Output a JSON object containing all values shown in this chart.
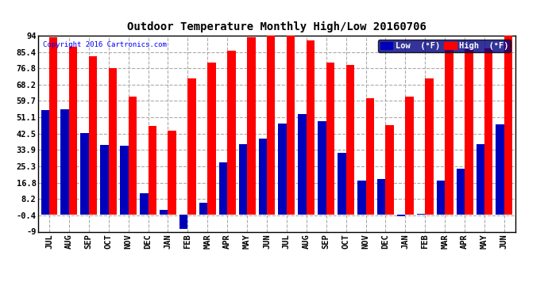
{
  "title": "Outdoor Temperature Monthly High/Low 20160706",
  "copyright": "Copyright 2016 Cartronics.com",
  "months": [
    "JUL",
    "AUG",
    "SEP",
    "OCT",
    "NOV",
    "DEC",
    "JAN",
    "FEB",
    "MAR",
    "APR",
    "MAY",
    "JUN",
    "JUL",
    "AUG",
    "SEP",
    "OCT",
    "NOV",
    "DEC",
    "JAN",
    "FEB",
    "MAR",
    "APR",
    "MAY",
    "JUN"
  ],
  "high_vals": [
    93.0,
    88.0,
    83.0,
    77.0,
    62.0,
    46.5,
    44.0,
    71.5,
    80.0,
    86.0,
    93.0,
    94.0,
    94.0,
    91.5,
    80.0,
    78.5,
    61.0,
    47.0,
    62.0,
    71.5,
    87.0,
    87.0,
    87.5,
    94.0
  ],
  "low_vals": [
    55.0,
    55.5,
    43.0,
    36.5,
    36.0,
    11.0,
    2.5,
    -7.5,
    6.0,
    27.5,
    37.0,
    40.0,
    48.0,
    53.0,
    49.0,
    32.5,
    18.0,
    18.5,
    -1.0,
    0.5,
    18.0,
    24.0,
    37.0,
    47.5
  ],
  "ylim": [
    -9.0,
    94.0
  ],
  "yticks": [
    -9.0,
    -0.4,
    8.2,
    16.8,
    25.3,
    33.9,
    42.5,
    51.1,
    59.7,
    68.2,
    76.8,
    85.4,
    94.0
  ],
  "bar_color_high": "#FF0000",
  "bar_color_low": "#0000BB",
  "background_color": "#FFFFFF",
  "grid_color": "#AAAAAA",
  "title_fontsize": 10,
  "legend_low_label": "Low  (°F)",
  "legend_high_label": "High  (°F)"
}
